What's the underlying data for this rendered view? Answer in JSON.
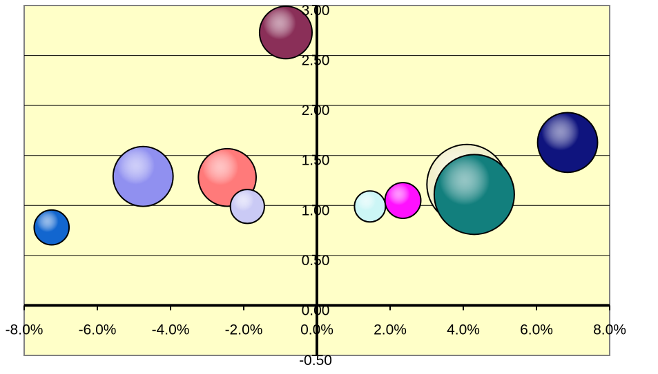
{
  "chart_data": {
    "type": "bubble",
    "title": "",
    "xlabel": "",
    "ylabel": "",
    "xlim": [
      -0.08,
      0.08
    ],
    "ylim": [
      -0.5,
      3.0
    ],
    "x_ticks": [
      {
        "value": -0.08,
        "label": "-8.0%"
      },
      {
        "value": -0.06,
        "label": "-6.0%"
      },
      {
        "value": -0.04,
        "label": "-4.0%"
      },
      {
        "value": -0.02,
        "label": "-2.0%"
      },
      {
        "value": 0.0,
        "label": "0.0%"
      },
      {
        "value": 0.02,
        "label": "2.0%"
      },
      {
        "value": 0.04,
        "label": "4.0%"
      },
      {
        "value": 0.06,
        "label": "6.0%"
      },
      {
        "value": 0.08,
        "label": "8.0%"
      }
    ],
    "y_ticks": [
      {
        "value": -0.5,
        "label": "-0.50"
      },
      {
        "value": 0.0,
        "label": "0.00"
      },
      {
        "value": 0.5,
        "label": "0.50"
      },
      {
        "value": 1.0,
        "label": "1.00"
      },
      {
        "value": 1.5,
        "label": "1.50"
      },
      {
        "value": 2.0,
        "label": "2.00"
      },
      {
        "value": 2.5,
        "label": "2.50"
      },
      {
        "value": 3.0,
        "label": "3.00"
      }
    ],
    "grid": {
      "horizontal": true,
      "vertical": false
    },
    "plot_background": "#ffffc8",
    "points": [
      {
        "x": 0.041,
        "y": 1.21,
        "size": 100,
        "color": "#f2f0cc"
      },
      {
        "x": 0.043,
        "y": 1.11,
        "size": 100,
        "color": "#127f7d"
      },
      {
        "x": 0.0685,
        "y": 1.63,
        "size": 56,
        "color": "#0f147e"
      },
      {
        "x": -0.0085,
        "y": 2.73,
        "size": 43,
        "color": "#8a2f58"
      },
      {
        "x": -0.0475,
        "y": 1.29,
        "size": 56,
        "color": "#9090f0"
      },
      {
        "x": -0.0245,
        "y": 1.28,
        "size": 52,
        "color": "#ff7a7a"
      },
      {
        "x": -0.0725,
        "y": 0.78,
        "size": 19,
        "color": "#1266cf"
      },
      {
        "x": -0.019,
        "y": 0.99,
        "size": 18,
        "color": "#cacaf5"
      },
      {
        "x": 0.0145,
        "y": 0.99,
        "size": 15,
        "color": "#ccf6f6"
      },
      {
        "x": 0.0235,
        "y": 1.05,
        "size": 20,
        "color": "#ff10ff"
      }
    ]
  }
}
